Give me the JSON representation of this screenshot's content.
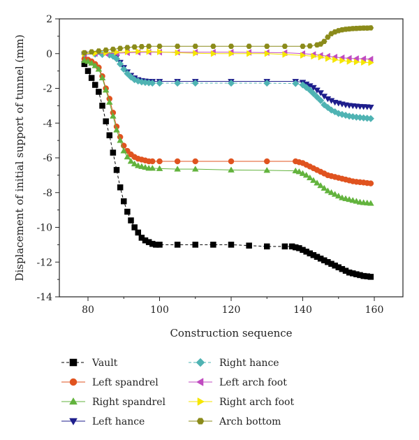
{
  "chart_data": {
    "type": "line",
    "title": "",
    "xlabel": "Construction sequence",
    "ylabel": "Displacement of initial support of tunnel (mm)",
    "xlim": [
      72,
      168
    ],
    "ylim": [
      -14,
      2
    ],
    "xticks": [
      80,
      100,
      120,
      140,
      160
    ],
    "yticks": [
      2,
      0,
      -2,
      -4,
      -6,
      -8,
      -10,
      -12,
      -14
    ],
    "grid": false,
    "legend_position": "bottom",
    "series": [
      {
        "name": "Vault",
        "color": "#000000",
        "marker": "square",
        "line": "dashed",
        "x": [
          79,
          80,
          81,
          82,
          83,
          84,
          85,
          86,
          87,
          88,
          89,
          90,
          91,
          92,
          93,
          94,
          95,
          96,
          97,
          98,
          99,
          100,
          105,
          110,
          115,
          120,
          125,
          130,
          135,
          137,
          138,
          139,
          140,
          141,
          142,
          143,
          144,
          145,
          146,
          147,
          148,
          149,
          150,
          151,
          152,
          153,
          154,
          155,
          156,
          157,
          158,
          159
        ],
        "y": [
          -0.6,
          -1.0,
          -1.4,
          -1.8,
          -2.2,
          -3.0,
          -3.9,
          -4.7,
          -5.7,
          -6.7,
          -7.7,
          -8.5,
          -9.1,
          -9.6,
          -10.0,
          -10.3,
          -10.6,
          -10.75,
          -10.85,
          -10.95,
          -11.0,
          -11.0,
          -11.0,
          -11.0,
          -11.0,
          -11.0,
          -11.05,
          -11.1,
          -11.1,
          -11.1,
          -11.15,
          -11.2,
          -11.3,
          -11.4,
          -11.5,
          -11.6,
          -11.7,
          -11.8,
          -11.9,
          -12.0,
          -12.1,
          -12.2,
          -12.3,
          -12.4,
          -12.5,
          -12.6,
          -12.65,
          -12.7,
          -12.75,
          -12.8,
          -12.82,
          -12.85
        ]
      },
      {
        "name": "Left spandrel",
        "color": "#e0531f",
        "marker": "circle",
        "line": "solid",
        "x": [
          79,
          80,
          81,
          82,
          83,
          84,
          85,
          86,
          87,
          88,
          89,
          90,
          91,
          92,
          93,
          94,
          95,
          96,
          97,
          98,
          100,
          105,
          110,
          120,
          130,
          138,
          139,
          140,
          141,
          142,
          143,
          144,
          145,
          146,
          147,
          148,
          149,
          150,
          151,
          152,
          153,
          154,
          155,
          156,
          157,
          158,
          159
        ],
        "y": [
          -0.3,
          -0.35,
          -0.45,
          -0.6,
          -0.8,
          -1.3,
          -2.0,
          -2.6,
          -3.4,
          -4.2,
          -4.8,
          -5.3,
          -5.6,
          -5.8,
          -5.95,
          -6.05,
          -6.1,
          -6.15,
          -6.2,
          -6.2,
          -6.2,
          -6.2,
          -6.2,
          -6.2,
          -6.2,
          -6.2,
          -6.25,
          -6.3,
          -6.4,
          -6.5,
          -6.6,
          -6.7,
          -6.8,
          -6.9,
          -7.0,
          -7.05,
          -7.1,
          -7.15,
          -7.2,
          -7.25,
          -7.3,
          -7.35,
          -7.38,
          -7.4,
          -7.42,
          -7.45,
          -7.47
        ]
      },
      {
        "name": "Right spandrel",
        "color": "#62b33d",
        "marker": "triangle-up",
        "line": "solid",
        "x": [
          79,
          80,
          81,
          82,
          83,
          84,
          85,
          86,
          87,
          88,
          89,
          90,
          91,
          92,
          93,
          94,
          95,
          96,
          97,
          98,
          100,
          105,
          110,
          120,
          130,
          138,
          139,
          140,
          141,
          142,
          143,
          144,
          145,
          146,
          147,
          148,
          149,
          150,
          151,
          152,
          153,
          154,
          155,
          156,
          157,
          158,
          159
        ],
        "y": [
          -0.4,
          -0.45,
          -0.55,
          -0.7,
          -0.9,
          -1.4,
          -2.1,
          -2.8,
          -3.6,
          -4.4,
          -5.0,
          -5.6,
          -5.95,
          -6.2,
          -6.35,
          -6.45,
          -6.5,
          -6.55,
          -6.6,
          -6.6,
          -6.62,
          -6.65,
          -6.65,
          -6.7,
          -6.72,
          -6.75,
          -6.8,
          -6.9,
          -7.0,
          -7.15,
          -7.3,
          -7.45,
          -7.6,
          -7.75,
          -7.9,
          -8.0,
          -8.1,
          -8.2,
          -8.3,
          -8.35,
          -8.4,
          -8.45,
          -8.5,
          -8.55,
          -8.58,
          -8.6,
          -8.62
        ]
      },
      {
        "name": "Left hance",
        "color": "#1e1e8c",
        "marker": "triangle-down",
        "line": "solid",
        "x": [
          79,
          82,
          84,
          86,
          87,
          88,
          89,
          90,
          91,
          92,
          93,
          94,
          95,
          96,
          97,
          98,
          100,
          105,
          110,
          120,
          130,
          138,
          140,
          141,
          142,
          143,
          144,
          145,
          146,
          147,
          148,
          149,
          150,
          151,
          152,
          153,
          154,
          155,
          156,
          157,
          158,
          159
        ],
        "y": [
          -0.02,
          -0.03,
          -0.04,
          -0.06,
          -0.1,
          -0.2,
          -0.5,
          -0.8,
          -1.05,
          -1.25,
          -1.4,
          -1.5,
          -1.55,
          -1.58,
          -1.6,
          -1.6,
          -1.6,
          -1.6,
          -1.6,
          -1.6,
          -1.6,
          -1.6,
          -1.65,
          -1.75,
          -1.85,
          -1.95,
          -2.1,
          -2.25,
          -2.45,
          -2.6,
          -2.7,
          -2.8,
          -2.85,
          -2.9,
          -2.95,
          -2.98,
          -3.0,
          -3.02,
          -3.04,
          -3.05,
          -3.06,
          -3.08
        ]
      },
      {
        "name": "Right hance",
        "color": "#4fb3b3",
        "marker": "diamond",
        "line": "dashed",
        "x": [
          79,
          82,
          84,
          86,
          87,
          88,
          89,
          90,
          91,
          92,
          93,
          94,
          95,
          96,
          97,
          98,
          100,
          105,
          110,
          120,
          130,
          138,
          140,
          141,
          142,
          143,
          144,
          145,
          146,
          147,
          148,
          149,
          150,
          151,
          152,
          153,
          154,
          155,
          156,
          157,
          158,
          159
        ],
        "y": [
          -0.02,
          -0.03,
          -0.05,
          -0.08,
          -0.15,
          -0.3,
          -0.6,
          -0.9,
          -1.15,
          -1.35,
          -1.5,
          -1.58,
          -1.63,
          -1.66,
          -1.68,
          -1.7,
          -1.7,
          -1.7,
          -1.7,
          -1.7,
          -1.7,
          -1.72,
          -1.8,
          -1.95,
          -2.1,
          -2.3,
          -2.5,
          -2.7,
          -2.95,
          -3.1,
          -3.25,
          -3.35,
          -3.45,
          -3.5,
          -3.55,
          -3.6,
          -3.63,
          -3.66,
          -3.68,
          -3.7,
          -3.72,
          -3.74
        ]
      },
      {
        "name": "Left arch foot",
        "color": "#c04bc0",
        "marker": "triangle-left",
        "line": "solid",
        "x": [
          79,
          82,
          85,
          88,
          91,
          94,
          97,
          100,
          105,
          110,
          115,
          120,
          125,
          130,
          135,
          140,
          143,
          145,
          147,
          149,
          151,
          153,
          155,
          157,
          159
        ],
        "y": [
          -0.01,
          0.0,
          0.0,
          0.02,
          0.05,
          0.07,
          0.08,
          0.08,
          0.08,
          0.08,
          0.08,
          0.08,
          0.07,
          0.06,
          0.05,
          0.0,
          -0.05,
          -0.1,
          -0.15,
          -0.2,
          -0.24,
          -0.27,
          -0.29,
          -0.3,
          -0.32
        ]
      },
      {
        "name": "Right arch foot",
        "color": "#f5e600",
        "marker": "triangle-right",
        "line": "solid",
        "x": [
          79,
          82,
          85,
          88,
          91,
          94,
          97,
          100,
          105,
          110,
          115,
          120,
          125,
          130,
          135,
          140,
          143,
          145,
          147,
          149,
          151,
          153,
          155,
          157,
          159
        ],
        "y": [
          0.0,
          0.02,
          0.05,
          0.08,
          0.1,
          0.12,
          0.12,
          0.1,
          0.05,
          0.02,
          0.0,
          0.0,
          0.0,
          0.0,
          -0.05,
          -0.1,
          -0.15,
          -0.2,
          -0.28,
          -0.35,
          -0.4,
          -0.45,
          -0.48,
          -0.5,
          -0.52
        ]
      },
      {
        "name": "Arch bottom",
        "color": "#8b8b1a",
        "marker": "hexagon",
        "line": "solid",
        "x": [
          79,
          81,
          83,
          85,
          87,
          89,
          91,
          93,
          95,
          97,
          100,
          105,
          110,
          115,
          120,
          125,
          130,
          135,
          140,
          142,
          144,
          145,
          146,
          147,
          148,
          149,
          150,
          151,
          152,
          153,
          154,
          155,
          156,
          157,
          158,
          159
        ],
        "y": [
          0.05,
          0.1,
          0.15,
          0.2,
          0.25,
          0.3,
          0.35,
          0.38,
          0.4,
          0.42,
          0.42,
          0.42,
          0.42,
          0.42,
          0.42,
          0.42,
          0.42,
          0.42,
          0.42,
          0.44,
          0.5,
          0.55,
          0.7,
          0.95,
          1.15,
          1.25,
          1.32,
          1.37,
          1.4,
          1.42,
          1.44,
          1.45,
          1.46,
          1.47,
          1.47,
          1.48
        ]
      }
    ]
  }
}
